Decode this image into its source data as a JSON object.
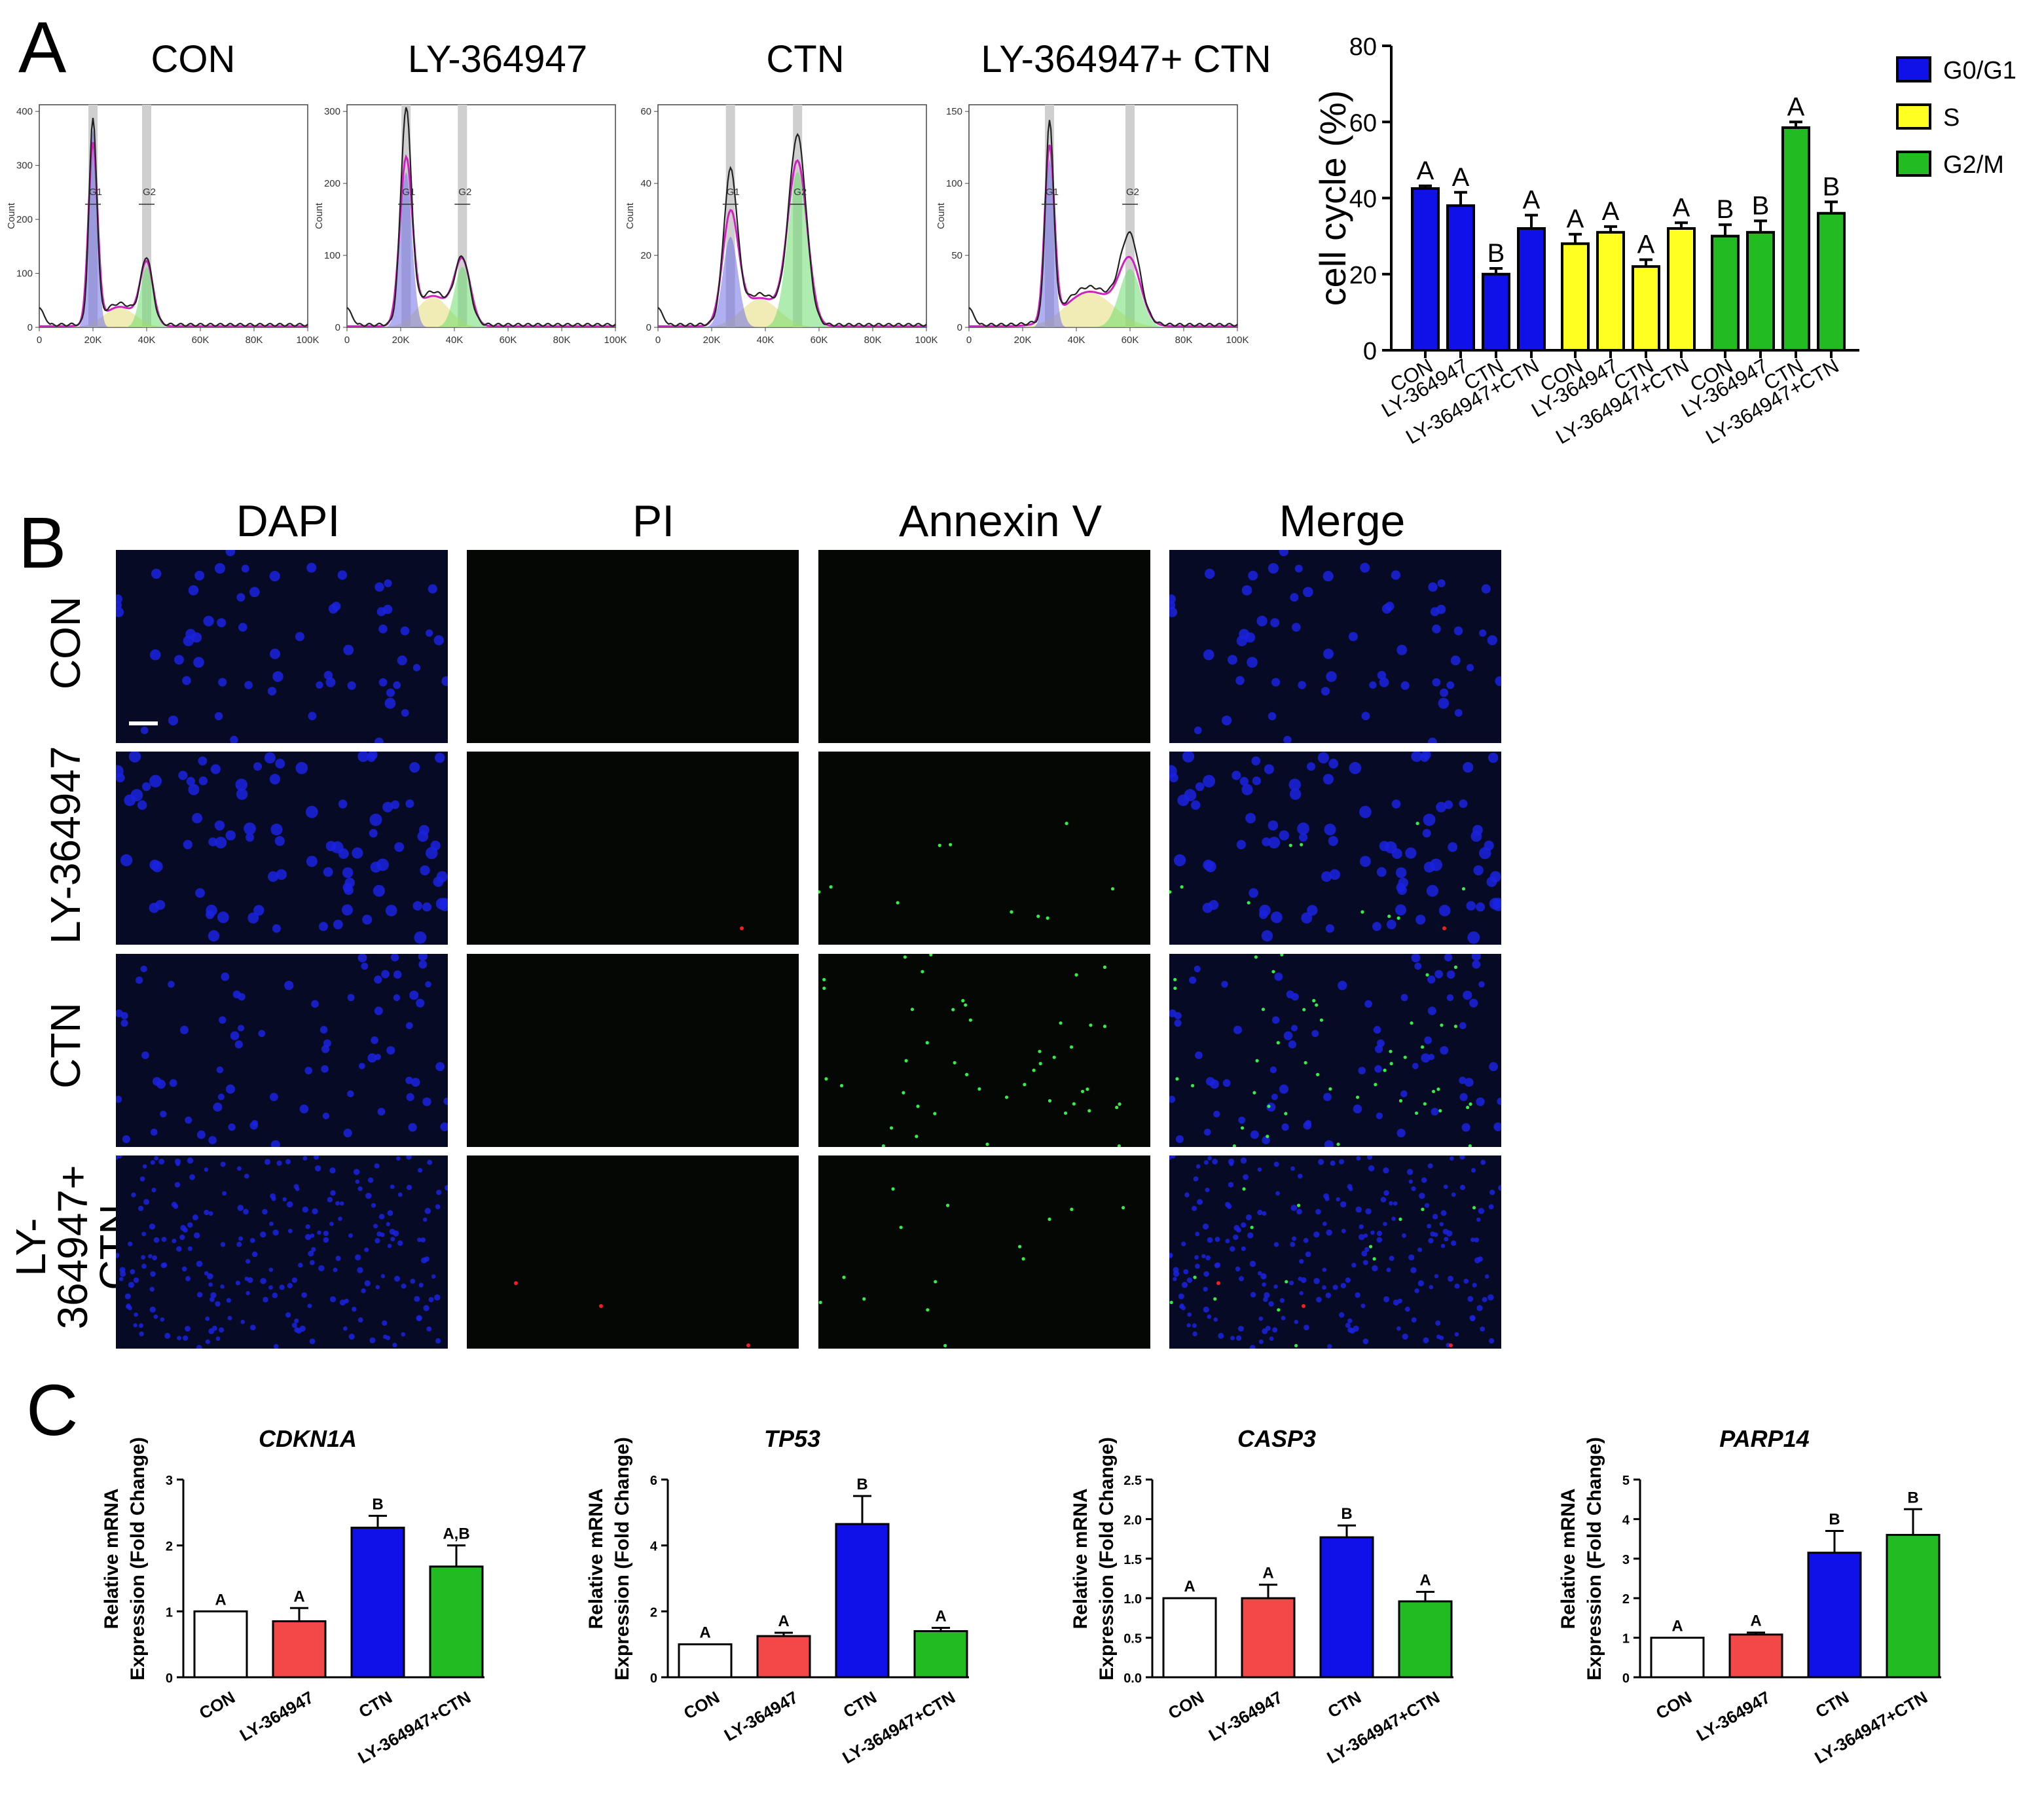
{
  "panels": {
    "a": {
      "letter": "A"
    },
    "b": {
      "letter": "B"
    },
    "c": {
      "letter": "C"
    }
  },
  "flow_histograms": [
    {
      "title": "CON",
      "x_ticks": [
        "0",
        "20K",
        "40K",
        "60K",
        "80K",
        "100K"
      ],
      "y_ticks": [
        "0",
        "100",
        "200",
        "300",
        "400"
      ],
      "y_max": 400,
      "ylabel": "Count",
      "gate_labels": [
        "G1",
        "G2"
      ]
    },
    {
      "title": "LY-364947",
      "x_ticks": [
        "0",
        "20K",
        "40K",
        "60K",
        "80K",
        "100K"
      ],
      "y_ticks": [
        "0",
        "100",
        "200",
        "300"
      ],
      "y_max": 300,
      "ylabel": "Count",
      "gate_labels": [
        "G1",
        "G2"
      ]
    },
    {
      "title": "CTN",
      "x_ticks": [
        "0",
        "20K",
        "40K",
        "60K",
        "80K",
        "100K"
      ],
      "y_ticks": [
        "0",
        "20",
        "40",
        "60"
      ],
      "y_max": 60,
      "ylabel": "Count",
      "gate_labels": [
        "G1",
        "G2"
      ]
    },
    {
      "title": "LY-364947+ CTN",
      "x_ticks": [
        "0",
        "20K",
        "40K",
        "60K",
        "80K",
        "100K"
      ],
      "y_ticks": [
        "0",
        "50",
        "100",
        "150"
      ],
      "y_max": 150,
      "ylabel": "Count",
      "gate_labels": [
        "G1",
        "G2"
      ]
    }
  ],
  "colors": {
    "blue": "#1010e8",
    "yellow": "#ffff22",
    "green": "#22bb22",
    "red": "#f24848",
    "white": "#ffffff",
    "magenta": "#d020c0"
  },
  "fluorescence": {
    "columns": [
      "DAPI",
      "PI",
      "Annexin V",
      "Merge"
    ],
    "rows": [
      "CON",
      "LY-364947",
      "CTN",
      "LY-364947+\nCTN"
    ]
  },
  "chart_data": [
    {
      "type": "bar",
      "title": "",
      "ylabel": "cell cycle  (%)",
      "ylim": [
        0,
        80
      ],
      "y_ticks": [
        "0",
        "20",
        "40",
        "60",
        "80"
      ],
      "categories": [
        "CON",
        "LY-364947",
        "CTN",
        "LY-364947+CTN"
      ],
      "legend": [
        "G0/G1",
        "S",
        "G2/M"
      ],
      "legend_position": "top-right",
      "series": [
        {
          "name": "G0/G1",
          "color": "#1010e8",
          "values": [
            42.5,
            38,
            20,
            32
          ],
          "errors": [
            0.7,
            3.5,
            1.5,
            3.5
          ],
          "letters": [
            "A",
            "A",
            "B",
            "A"
          ]
        },
        {
          "name": "S",
          "color": "#ffff22",
          "values": [
            28,
            31,
            22,
            32
          ],
          "errors": [
            2.5,
            1.5,
            1.8,
            1.5
          ],
          "letters": [
            "A",
            "A",
            "A",
            "A"
          ]
        },
        {
          "name": "G2/M",
          "color": "#22bb22",
          "values": [
            30,
            31,
            58.5,
            36
          ],
          "errors": [
            3,
            3,
            1.5,
            3
          ],
          "letters": [
            "B",
            "B",
            "A",
            "B"
          ]
        }
      ]
    },
    {
      "type": "bar",
      "title": "CDKN1A",
      "ylabel": [
        "Relative mRNA",
        "Expression (Fold Change)"
      ],
      "ylim": [
        0,
        3
      ],
      "y_ticks": [
        "0",
        "1",
        "2",
        "3"
      ],
      "categories": [
        "CON",
        "LY-364947",
        "CTN",
        "LY-364947+CTN"
      ],
      "values": [
        1.0,
        0.85,
        2.27,
        1.68
      ],
      "errors": [
        0,
        0.2,
        0.18,
        0.32
      ],
      "letters": [
        "A",
        "A",
        "B",
        "A,B"
      ]
    },
    {
      "type": "bar",
      "title": "TP53",
      "ylabel": [
        "Relative mRNA",
        "Expression (Fold Change)"
      ],
      "ylim": [
        0,
        6
      ],
      "y_ticks": [
        "0",
        "2",
        "4",
        "6"
      ],
      "categories": [
        "CON",
        "LY-364947",
        "CTN",
        "LY-364947+CTN"
      ],
      "values": [
        1.0,
        1.25,
        4.65,
        1.4
      ],
      "errors": [
        0,
        0.1,
        0.85,
        0.1
      ],
      "letters": [
        "A",
        "A",
        "B",
        "A"
      ]
    },
    {
      "type": "bar",
      "title": "CASP3",
      "ylabel": [
        "Relative mRNA",
        "Expression (Fold Change)"
      ],
      "ylim": [
        0,
        2.5
      ],
      "y_ticks": [
        "0.0",
        "0.5",
        "1.0",
        "1.5",
        "2.0",
        "2.5"
      ],
      "categories": [
        "CON",
        "LY-364947",
        "CTN",
        "LY-364947+CTN"
      ],
      "values": [
        1.0,
        1.0,
        1.77,
        0.96
      ],
      "errors": [
        0,
        0.17,
        0.15,
        0.12
      ],
      "letters": [
        "A",
        "A",
        "B",
        "A"
      ]
    },
    {
      "type": "bar",
      "title": "PARP14",
      "ylabel": [
        "Relative mRNA",
        "Expression (Fold Change)"
      ],
      "ylim": [
        0,
        5
      ],
      "y_ticks": [
        "0",
        "1",
        "2",
        "3",
        "4",
        "5"
      ],
      "categories": [
        "CON",
        "LY-364947",
        "CTN",
        "LY-364947+CTN"
      ],
      "values": [
        1.0,
        1.08,
        3.15,
        3.6
      ],
      "errors": [
        0,
        0.05,
        0.55,
        0.65
      ],
      "letters": [
        "A",
        "A",
        "B",
        "B"
      ]
    }
  ]
}
